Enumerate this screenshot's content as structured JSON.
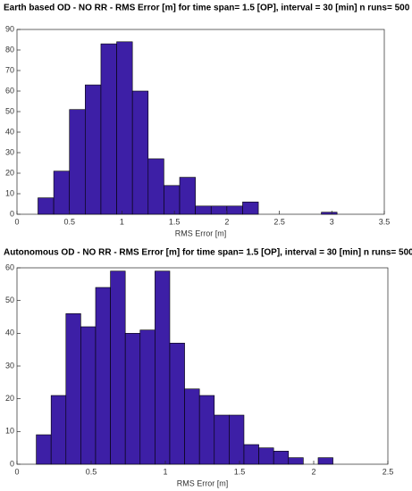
{
  "chart_data": [
    {
      "type": "histogram",
      "title": "Earth based OD - NO RR - RMS  Error [m] for time span= 1.5 [OP], interval = 30 [min] n runs= 500",
      "x_label": "RMS Error [m]",
      "bins": [
        0.2,
        0.35,
        0.5,
        0.65,
        0.8,
        0.95,
        1.1,
        1.25,
        1.4,
        1.55,
        1.7,
        1.85,
        2.0,
        2.15,
        2.3,
        2.45,
        2.6,
        2.75,
        2.9,
        3.05
      ],
      "values": [
        8,
        21,
        51,
        63,
        83,
        84,
        60,
        27,
        14,
        18,
        4,
        4,
        4,
        6,
        0,
        0,
        0,
        0,
        1
      ],
      "color": "#3d1fa6",
      "xlim": [
        0,
        3.5
      ],
      "xticks": [
        0,
        0.5,
        1,
        1.5,
        2,
        2.5,
        3,
        3.5
      ],
      "ylim": [
        0,
        90
      ],
      "yticks": [
        0,
        10,
        20,
        30,
        40,
        50,
        60,
        70,
        80,
        90
      ]
    },
    {
      "type": "histogram",
      "title": "Autonomous OD - NO RR - RMS  Error [m] for time span= 1.5 [OP], interval = 30 [min] n runs= 500",
      "x_label": "RMS Error [m]",
      "bins": [
        0.13,
        0.23,
        0.33,
        0.43,
        0.53,
        0.63,
        0.73,
        0.83,
        0.93,
        1.03,
        1.13,
        1.23,
        1.33,
        1.43,
        1.53,
        1.63,
        1.73,
        1.83,
        1.93,
        2.03,
        2.13
      ],
      "values": [
        9,
        21,
        46,
        42,
        54,
        59,
        40,
        41,
        59,
        37,
        23,
        21,
        15,
        15,
        6,
        5,
        4,
        2,
        0,
        2
      ],
      "color": "#3d1fa6",
      "xlim": [
        0,
        2.5
      ],
      "xticks": [
        0,
        0.5,
        1,
        1.5,
        2,
        2.5
      ],
      "ylim": [
        0,
        60
      ],
      "yticks": [
        0,
        10,
        20,
        30,
        40,
        50,
        60
      ]
    }
  ]
}
